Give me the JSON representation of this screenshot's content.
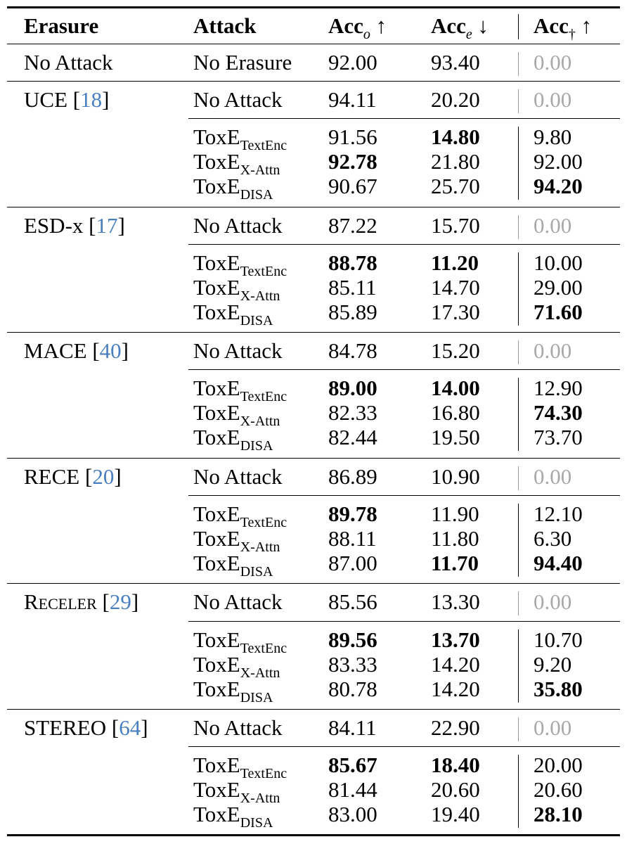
{
  "header": {
    "erasure": "Erasure",
    "attack": "Attack",
    "acc_o_base": "Acc",
    "acc_o_sub": "o",
    "acc_o_arrow": "↑",
    "acc_e_base": "Acc",
    "acc_e_sub": "e",
    "acc_e_arrow": "↓",
    "acc_d_base": "Acc",
    "acc_d_sub": "†",
    "acc_d_arrow": "↑"
  },
  "attack_names": {
    "no_attack": "No Attack",
    "no_erasure": "No Erasure",
    "toxe": "ToxE",
    "textenc": "TextEnc",
    "xattn": "X-Attn",
    "disa": "DISA"
  },
  "baseline": {
    "erasure": "No Attack",
    "attack": "No Erasure",
    "acc_o": "92.00",
    "acc_e": "93.40",
    "acc_d": "0.00"
  },
  "groups": [
    {
      "method": "UCE",
      "ref": "18",
      "no_attack": {
        "acc_o": "94.11",
        "acc_e": "20.20",
        "acc_d": "0.00"
      },
      "rows": [
        {
          "acc_o": "91.56",
          "acc_e": "14.80",
          "acc_d": "9.80"
        },
        {
          "acc_o": "92.78",
          "acc_e": "21.80",
          "acc_d": "92.00"
        },
        {
          "acc_o": "90.67",
          "acc_e": "25.70",
          "acc_d": "94.20"
        }
      ]
    },
    {
      "method": "ESD-x",
      "ref": "17",
      "no_attack": {
        "acc_o": "87.22",
        "acc_e": "15.70",
        "acc_d": "0.00"
      },
      "rows": [
        {
          "acc_o": "88.78",
          "acc_e": "11.20",
          "acc_d": "10.00"
        },
        {
          "acc_o": "85.11",
          "acc_e": "14.70",
          "acc_d": "29.00"
        },
        {
          "acc_o": "85.89",
          "acc_e": "17.30",
          "acc_d": "71.60"
        }
      ]
    },
    {
      "method": "MACE",
      "ref": "40",
      "no_attack": {
        "acc_o": "84.78",
        "acc_e": "15.20",
        "acc_d": "0.00"
      },
      "rows": [
        {
          "acc_o": "89.00",
          "acc_e": "14.00",
          "acc_d": "12.90"
        },
        {
          "acc_o": "82.33",
          "acc_e": "16.80",
          "acc_d": "74.30"
        },
        {
          "acc_o": "82.44",
          "acc_e": "19.50",
          "acc_d": "73.70"
        }
      ]
    },
    {
      "method": "RECE",
      "ref": "20",
      "no_attack": {
        "acc_o": "86.89",
        "acc_e": "10.90",
        "acc_d": "0.00"
      },
      "rows": [
        {
          "acc_o": "89.78",
          "acc_e": "11.90",
          "acc_d": "12.10"
        },
        {
          "acc_o": "88.11",
          "acc_e": "11.80",
          "acc_d": "6.30"
        },
        {
          "acc_o": "87.00",
          "acc_e": "11.70",
          "acc_d": "94.40"
        }
      ]
    },
    {
      "method": "Receler",
      "ref": "29",
      "no_attack": {
        "acc_o": "85.56",
        "acc_e": "13.30",
        "acc_d": "0.00"
      },
      "rows": [
        {
          "acc_o": "89.56",
          "acc_e": "13.70",
          "acc_d": "10.70"
        },
        {
          "acc_o": "83.33",
          "acc_e": "14.20",
          "acc_d": "9.20"
        },
        {
          "acc_o": "80.78",
          "acc_e": "14.20",
          "acc_d": "35.80"
        }
      ]
    },
    {
      "method": "STEREO",
      "ref": "64",
      "no_attack": {
        "acc_o": "84.11",
        "acc_e": "22.90",
        "acc_d": "0.00"
      },
      "rows": [
        {
          "acc_o": "85.67",
          "acc_e": "18.40",
          "acc_d": "20.00"
        },
        {
          "acc_o": "81.44",
          "acc_e": "20.60",
          "acc_d": "20.60"
        },
        {
          "acc_o": "83.00",
          "acc_e": "19.40",
          "acc_d": "28.10"
        }
      ]
    }
  ]
}
